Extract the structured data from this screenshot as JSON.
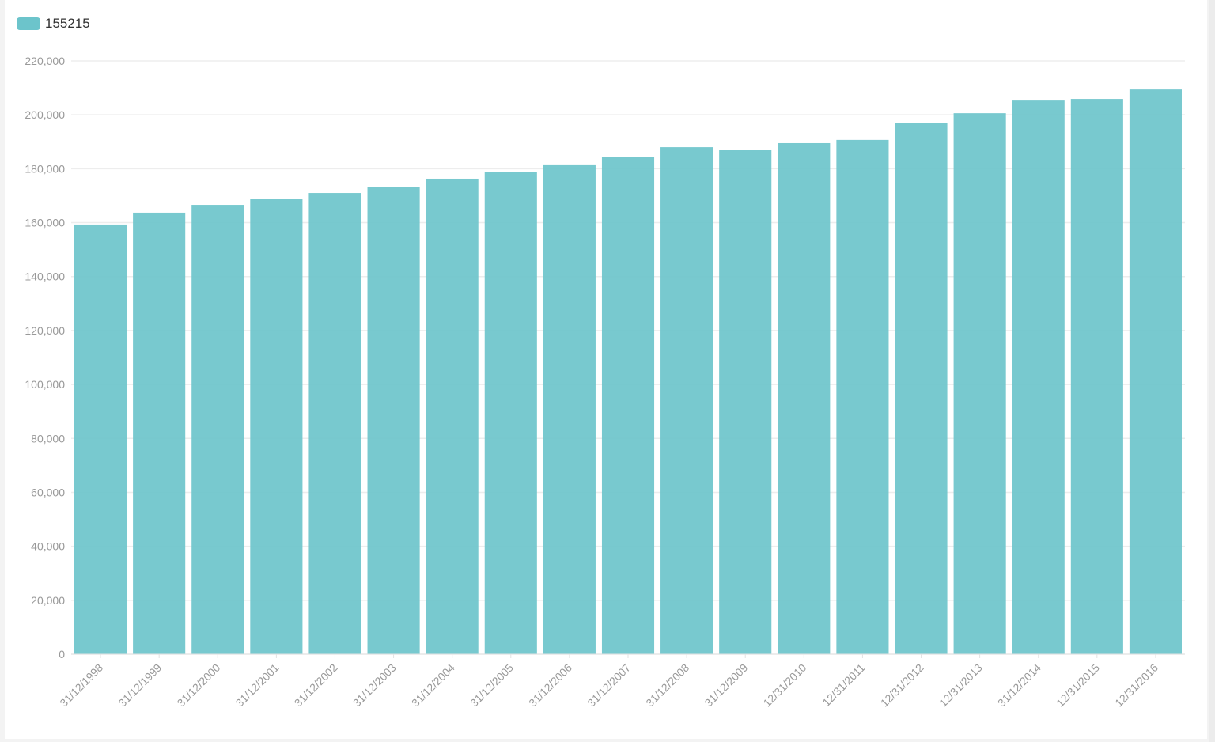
{
  "chart_data": {
    "type": "bar",
    "title": "",
    "xlabel": "",
    "ylabel": "",
    "legend": {
      "position": "top-left",
      "entries": [
        "155215"
      ]
    },
    "series": [
      {
        "name": "155215",
        "color": "#6cc4cb",
        "values": [
          159300,
          163700,
          166600,
          168700,
          171000,
          173100,
          176300,
          178900,
          181600,
          184500,
          188000,
          186900,
          189500,
          190700,
          197100,
          200600,
          205300,
          205900,
          209400
        ]
      }
    ],
    "categories": [
      "31/12/1998",
      "31/12/1999",
      "31/12/2000",
      "31/12/2001",
      "31/12/2002",
      "31/12/2003",
      "31/12/2004",
      "31/12/2005",
      "31/12/2006",
      "31/12/2007",
      "31/12/2008",
      "31/12/2009",
      "12/31/2010",
      "12/31/2011",
      "12/31/2012",
      "12/31/2013",
      "31/12/2014",
      "12/31/2015",
      "12/31/2016"
    ],
    "ylim": [
      0,
      220000
    ],
    "yticks": [
      "0",
      "20,000",
      "40,000",
      "60,000",
      "80,000",
      "100,000",
      "120,000",
      "140,000",
      "160,000",
      "180,000",
      "200,000",
      "220,000"
    ],
    "grid": true
  }
}
